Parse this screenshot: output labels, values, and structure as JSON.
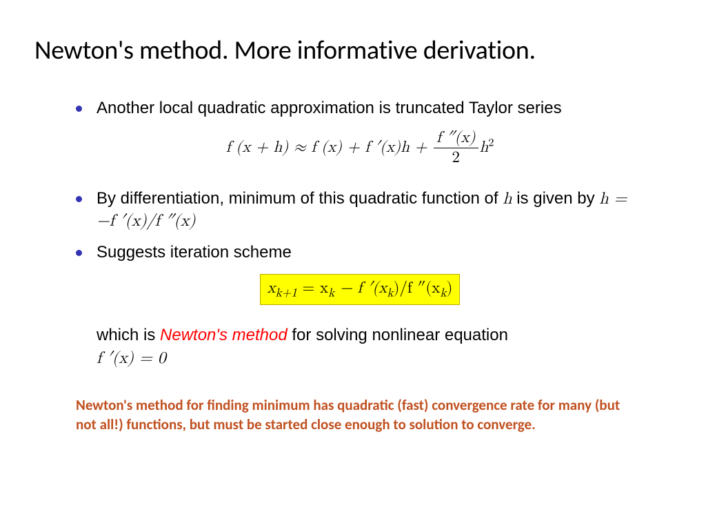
{
  "title": "Newton's method. More informative derivation.",
  "bullets": {
    "b1": "Another local quadratic approximation is truncated Taylor series",
    "b2_pre": "By differentiation, minimum of this quadratic function of ",
    "b2_var": "h",
    "b2_mid": " is given by ",
    "b2_eq": "h = −f ′(x)/f ″(x)",
    "b3": "Suggests iteration scheme"
  },
  "formulas": {
    "taylor_lhs": "f (x + h) ≈ f (x) + f ′(x)h + ",
    "taylor_frac_num": "f ″(x)",
    "taylor_frac_den": "2",
    "taylor_end": "h",
    "taylor_sq": "2",
    "iteration_lhs": "x",
    "iteration_sub1": "k+1",
    "iteration_mid": " = x",
    "iteration_sub2": "k",
    "iteration_rhs": " − f ′(x",
    "iteration_sub3": "k",
    "iteration_rhs2": ")/f ″(x",
    "iteration_sub4": "k",
    "iteration_rhs3": ")"
  },
  "continuation": {
    "pre": "which is ",
    "emph": "Newton's method",
    "post": " for solving nonlinear equation",
    "eq": "f ′(x) = 0"
  },
  "footnote": "Newton's method for finding minimum has quadratic (fast) convergence rate for many (but not all!) functions, but must be started close enough to solution to converge.",
  "colors": {
    "bullet": "#3333b3",
    "highlight_bg": "#ffff00",
    "red": "#ff0000",
    "footnote": "#c05020",
    "text": "#000000",
    "background": "#ffffff"
  },
  "typography": {
    "title_fontsize": 38,
    "body_fontsize": 24,
    "formula_fontsize": 23,
    "footnote_fontsize": 21
  }
}
